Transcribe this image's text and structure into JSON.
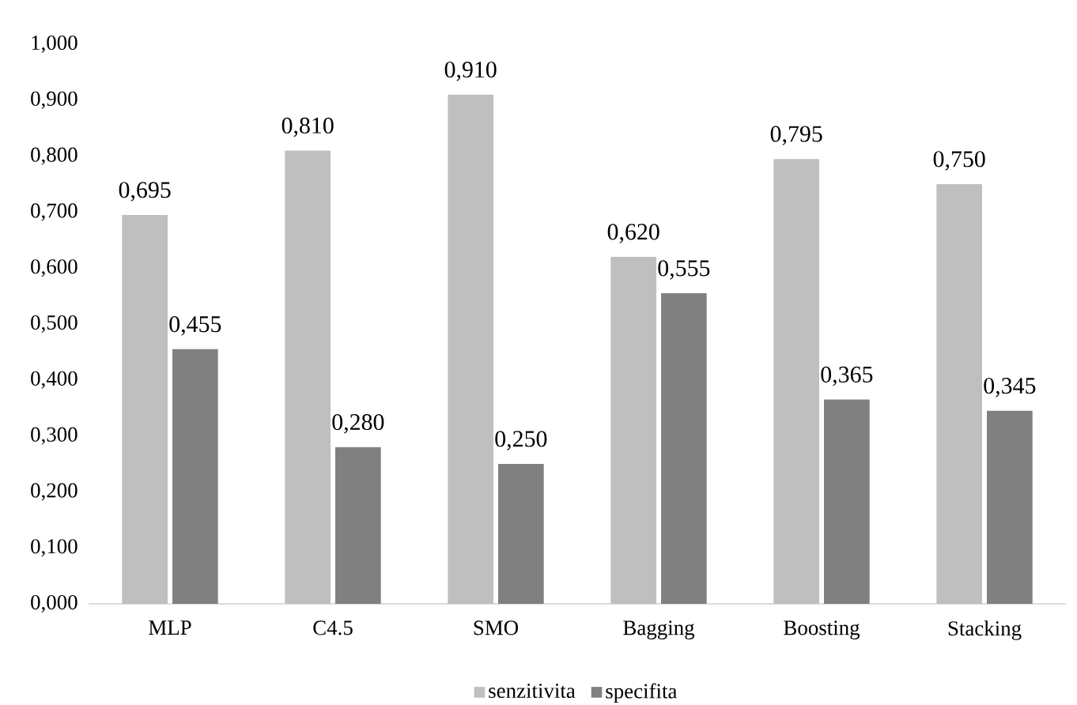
{
  "chart_data": {
    "type": "bar",
    "categories": [
      "MLP",
      "C4.5",
      "SMO",
      "Bagging",
      "Boosting",
      "Stacking"
    ],
    "series": [
      {
        "name": "senzitivita",
        "color": "#bfbfbf",
        "values": [
          0.695,
          0.81,
          0.91,
          0.62,
          0.795,
          0.75
        ],
        "value_labels": [
          "0,695",
          "0,810",
          "0,910",
          "0,620",
          "0,795",
          "0,750"
        ]
      },
      {
        "name": "specifita",
        "color": "#808080",
        "values": [
          0.455,
          0.28,
          0.25,
          0.555,
          0.365,
          0.345
        ],
        "value_labels": [
          "0,455",
          "0,280",
          "0,250",
          "0,555",
          "0,365",
          "0,345"
        ]
      }
    ],
    "ylim": [
      0,
      1
    ],
    "yticks": [
      {
        "value": 0,
        "label": "0,000"
      },
      {
        "value": 0.1,
        "label": "0,100"
      },
      {
        "value": 0.2,
        "label": "0,200"
      },
      {
        "value": 0.3,
        "label": "0,300"
      },
      {
        "value": 0.4,
        "label": "0,400"
      },
      {
        "value": 0.5,
        "label": "0,500"
      },
      {
        "value": 0.6,
        "label": "0,600"
      },
      {
        "value": 0.7,
        "label": "0,700"
      },
      {
        "value": 0.8,
        "label": "0,800"
      },
      {
        "value": 0.9,
        "label": "0,900"
      },
      {
        "value": 1,
        "label": "1,000"
      }
    ],
    "grid": false,
    "legend": "bottom"
  }
}
